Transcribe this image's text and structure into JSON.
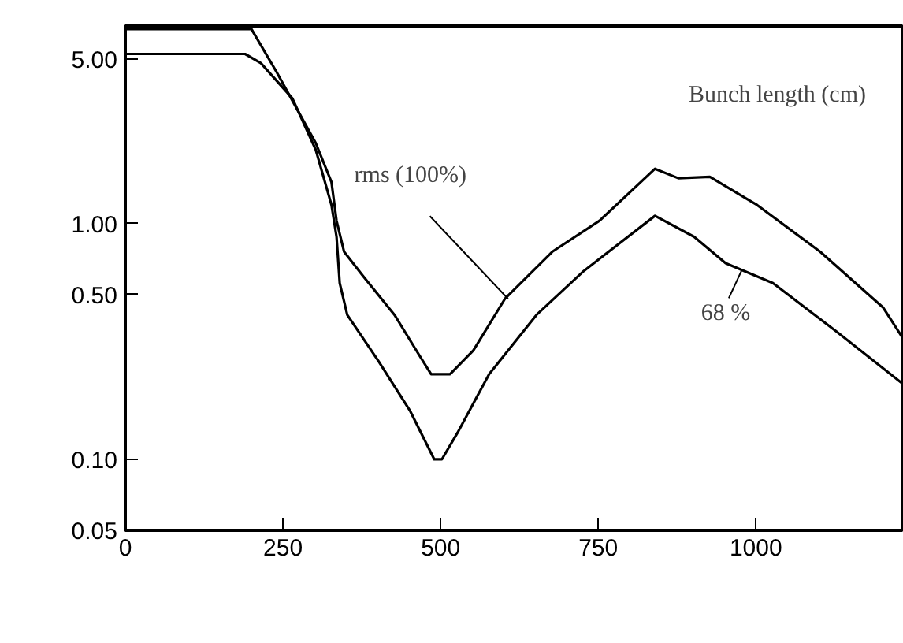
{
  "chart_data": {
    "type": "line",
    "title": "Bunch length (cm)",
    "log": "y",
    "xlim": [
      0,
      1232
    ],
    "ylim": [
      0.05,
      6.9
    ],
    "xticks": [
      0,
      250,
      500,
      750,
      1000
    ],
    "yticks": [
      {
        "value": 0.05,
        "label": "0.05"
      },
      {
        "value": 0.1,
        "label": "0.10"
      },
      {
        "value": 0.5,
        "label": "0.50"
      },
      {
        "value": 1,
        "label": "1.00"
      },
      {
        "value": 5,
        "label": "5.00"
      }
    ],
    "grid": false,
    "line_style": "solid",
    "marker": "none",
    "series": [
      {
        "color": "#000000",
        "x": [
          0,
          200,
          240,
          302,
          327,
          335,
          347,
          377,
          427,
          465,
          485,
          515,
          552,
          602,
          677,
          752,
          840,
          877,
          927,
          1002,
          1102,
          1202,
          1232
        ],
        "values": [
          6.7,
          6.7,
          4.4,
          2.2,
          1.5,
          1.03,
          0.76,
          0.6,
          0.41,
          0.28,
          0.23,
          0.23,
          0.29,
          0.48,
          0.76,
          1.03,
          1.71,
          1.56,
          1.58,
          1.2,
          0.76,
          0.44,
          0.33
        ]
      },
      {
        "color": "#000000",
        "x": [
          0,
          190,
          215,
          265,
          302,
          327,
          335,
          340,
          352,
          402,
          452,
          490,
          502,
          527,
          577,
          652,
          727,
          840,
          902,
          952,
          1027,
          1127,
          1232
        ],
        "values": [
          5.25,
          5.25,
          4.8,
          3.4,
          2.06,
          1.2,
          0.88,
          0.56,
          0.41,
          0.26,
          0.16,
          0.1,
          0.1,
          0.13,
          0.23,
          0.41,
          0.63,
          1.08,
          0.88,
          0.68,
          0.56,
          0.35,
          0.21
        ]
      }
    ],
    "annotations": [
      {
        "text": "rms (100%)",
        "x": 607,
        "y": 0.48
      },
      {
        "text": "68 %",
        "x": 977,
        "y": 0.63
      }
    ]
  }
}
